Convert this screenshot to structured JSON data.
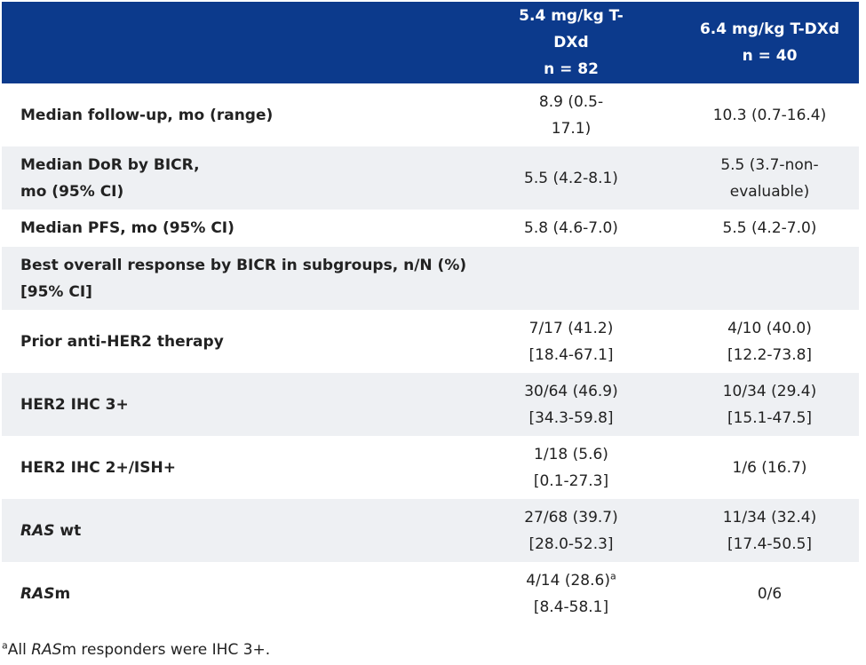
{
  "table": {
    "header": [
      [],
      [
        "5.4 mg/kg T-",
        "DXd",
        "n = 82"
      ],
      [
        "6.4 mg/kg T-DXd",
        "n = 40"
      ]
    ],
    "rows": [
      {
        "label": [
          "Median follow-up, mo (range)"
        ],
        "cells": [
          [
            "8.9 (0.5-",
            "17.1)"
          ],
          [
            "10.3 (0.7-16.4)"
          ]
        ]
      },
      {
        "label": [
          "Median DoR by BICR,",
          "mo (95% CI)"
        ],
        "cells": [
          [
            "5.5 (4.2-8.1)"
          ],
          [
            "5.5 (3.7-non-",
            "evaluable)"
          ]
        ]
      },
      {
        "label": [
          "Median PFS, mo (95% CI)"
        ],
        "cells": [
          [
            "5.8 (4.6-7.0)"
          ],
          [
            "5.5 (4.2-7.0)"
          ]
        ]
      },
      {
        "label": [
          "Best overall response by BICR in subgroups, n/N (%)",
          "[95% CI]"
        ],
        "cells": []
      },
      {
        "label": [
          "Prior anti-HER2 therapy"
        ],
        "cells": [
          [
            "7/17 (41.2)",
            "[18.4-67.1]"
          ],
          [
            "4/10 (40.0)",
            "[12.2-73.8]"
          ]
        ]
      },
      {
        "label": [
          "HER2 IHC 3+"
        ],
        "cells": [
          [
            "30/64 (46.9)",
            "[34.3-59.8]"
          ],
          [
            "10/34 (29.4)",
            "[15.1-47.5]"
          ]
        ]
      },
      {
        "label": [
          "HER2 IHC 2+/ISH+"
        ],
        "cells": [
          [
            "1/18 (5.6)",
            "[0.1-27.3]"
          ],
          [
            "1/6 (16.7)"
          ]
        ]
      },
      {
        "label_italic": "RAS",
        "label": [
          " wt"
        ],
        "cells": [
          [
            "27/68 (39.7)",
            "[28.0-52.3]"
          ],
          [
            "11/34 (32.4)",
            "[17.4-50.5]"
          ]
        ]
      },
      {
        "label_italic": "RAS",
        "label": [
          "m"
        ],
        "note_mark": "a",
        "cells": [
          [
            "4/14 (28.6)",
            "[8.4-58.1]"
          ],
          [
            "0/6"
          ]
        ]
      }
    ]
  },
  "footnote": {
    "mark": "a",
    "before": "All ",
    "italic": "RAS",
    "after": "m responders were IHC 3+."
  }
}
